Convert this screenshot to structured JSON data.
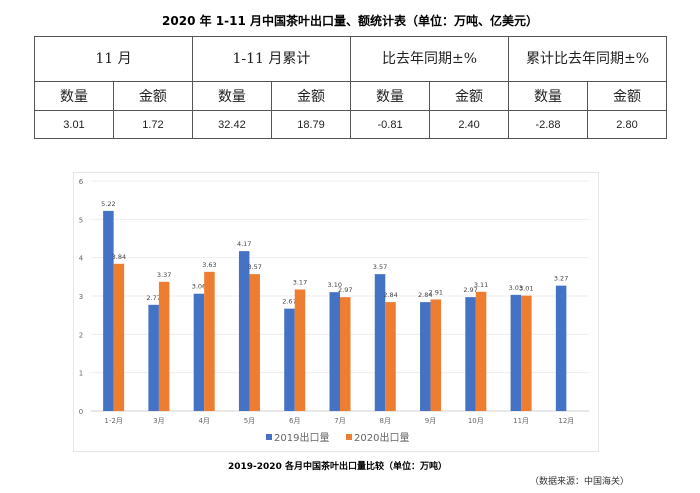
{
  "table": {
    "title": "2020 年 1-11 月中国茶叶出口量、额统计表（单位：万吨、亿美元）",
    "groups": [
      "11 月",
      "1-11 月累计",
      "比去年同期±%",
      "累计比去年同期±%"
    ],
    "subheaders": [
      "数量",
      "金额",
      "数量",
      "金额",
      "数量",
      "金额",
      "数量",
      "金额"
    ],
    "values": [
      "3.01",
      "1.72",
      "32.42",
      "18.79",
      "-0.81",
      "2.40",
      "-2.88",
      "2.80"
    ]
  },
  "chart_data": {
    "type": "bar",
    "categories": [
      "1-2月",
      "3月",
      "4月",
      "5月",
      "6月",
      "7月",
      "8月",
      "9月",
      "10月",
      "11月",
      "12月"
    ],
    "series": [
      {
        "name": "2019出口量",
        "color": "#4472C4",
        "values": [
          5.22,
          2.77,
          3.06,
          4.17,
          2.67,
          3.1,
          3.57,
          2.84,
          2.97,
          3.03,
          3.27
        ]
      },
      {
        "name": "2020出口量",
        "color": "#ED7D31",
        "values": [
          3.84,
          3.37,
          3.63,
          3.57,
          3.17,
          2.97,
          2.84,
          2.91,
          3.11,
          3.01,
          null
        ]
      }
    ],
    "ylim": [
      0,
      6
    ],
    "yticks": [
      0,
      1,
      2,
      3,
      4,
      5,
      6
    ],
    "grid": true,
    "legend": "bottom",
    "caption": "2019-2020 各月中国茶叶出口量比较（单位：万吨）",
    "source": "（数据来源：中国海关）"
  }
}
